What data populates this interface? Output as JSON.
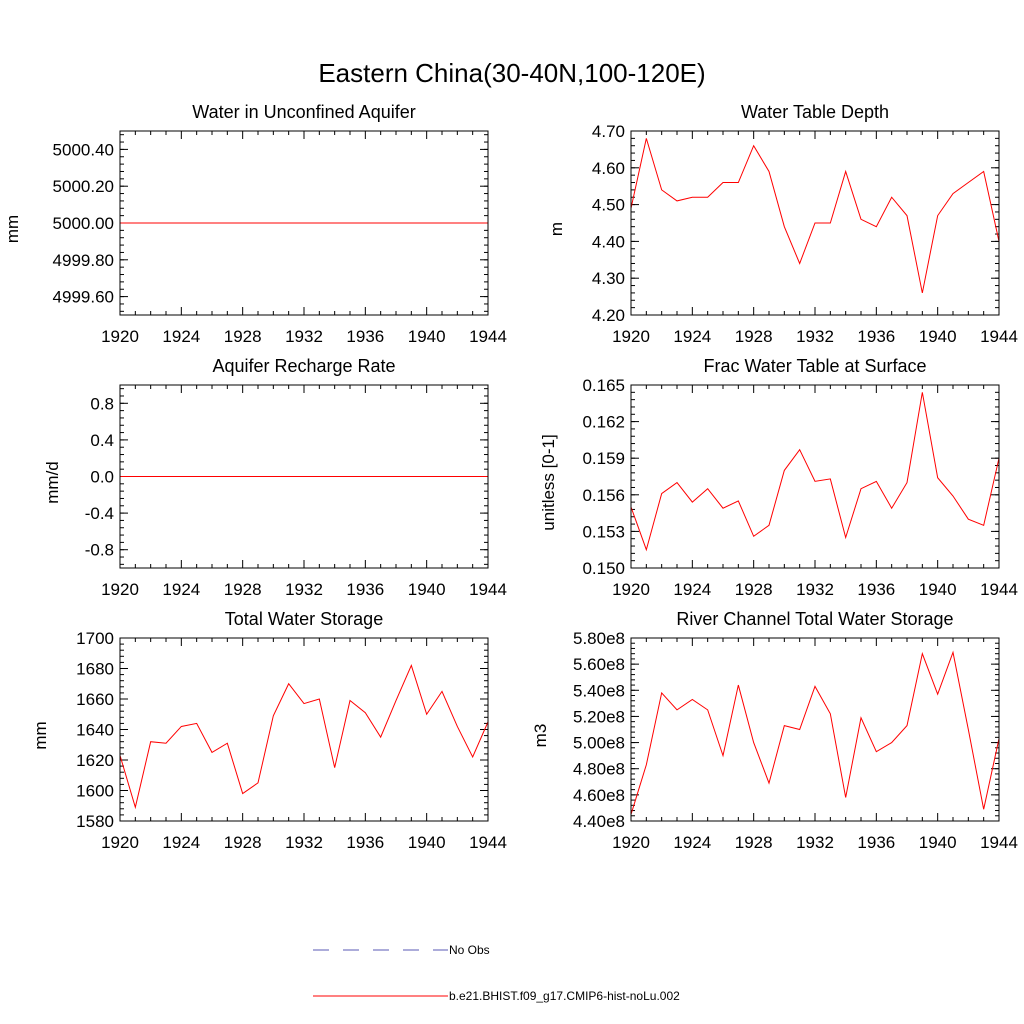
{
  "title": "Eastern China(30-40N,100-120E)",
  "legend": {
    "entries": [
      {
        "label": "No Obs",
        "color": "#5a5ab4",
        "style": "dashed"
      },
      {
        "label": "b.e21.BHIST.f09_g17.CMIP6-hist-noLu.002",
        "color": "#ff0000",
        "style": "solid"
      }
    ]
  },
  "chart_data": [
    {
      "type": "line",
      "title": "Water in Unconfined Aquifer",
      "xlabel": "",
      "ylabel": "mm",
      "xlim": [
        1920,
        1944
      ],
      "ylim": [
        4999.5,
        5000.5
      ],
      "xticks": [
        "1920",
        "1924",
        "1928",
        "1932",
        "1936",
        "1940",
        "1944"
      ],
      "yticks": [
        {
          "value": 4999.6,
          "label": "4999.60"
        },
        {
          "value": 4999.8,
          "label": "4999.80"
        },
        {
          "value": 5000.0,
          "label": "5000.00"
        },
        {
          "value": 5000.2,
          "label": "5000.20"
        },
        {
          "value": 5000.4,
          "label": "5000.40"
        }
      ],
      "series": [
        {
          "color": "#ff0000",
          "x": [
            1920,
            1921,
            1922,
            1923,
            1924,
            1925,
            1926,
            1927,
            1928,
            1929,
            1930,
            1931,
            1932,
            1933,
            1934,
            1935,
            1936,
            1937,
            1938,
            1939,
            1940,
            1941,
            1942,
            1943,
            1944
          ],
          "values": [
            5000,
            5000,
            5000,
            5000,
            5000,
            5000,
            5000,
            5000,
            5000,
            5000,
            5000,
            5000,
            5000,
            5000,
            5000,
            5000,
            5000,
            5000,
            5000,
            5000,
            5000,
            5000,
            5000,
            5000,
            5000
          ]
        }
      ]
    },
    {
      "type": "line",
      "title": "Water Table Depth",
      "xlabel": "",
      "ylabel": "m",
      "xlim": [
        1920,
        1944
      ],
      "ylim": [
        4.2,
        4.7
      ],
      "xticks": [
        "1920",
        "1924",
        "1928",
        "1932",
        "1936",
        "1940",
        "1944"
      ],
      "yticks": [
        {
          "value": 4.2,
          "label": "4.20"
        },
        {
          "value": 4.3,
          "label": "4.30"
        },
        {
          "value": 4.4,
          "label": "4.40"
        },
        {
          "value": 4.5,
          "label": "4.50"
        },
        {
          "value": 4.6,
          "label": "4.60"
        },
        {
          "value": 4.7,
          "label": "4.70"
        }
      ],
      "series": [
        {
          "color": "#ff0000",
          "x": [
            1920,
            1921,
            1922,
            1923,
            1924,
            1925,
            1926,
            1927,
            1928,
            1929,
            1930,
            1931,
            1932,
            1933,
            1934,
            1935,
            1936,
            1937,
            1938,
            1939,
            1940,
            1941,
            1942,
            1943,
            1944
          ],
          "values": [
            4.49,
            4.68,
            4.54,
            4.51,
            4.52,
            4.52,
            4.56,
            4.56,
            4.66,
            4.59,
            4.44,
            4.34,
            4.45,
            4.45,
            4.59,
            4.46,
            4.44,
            4.52,
            4.47,
            4.26,
            4.47,
            4.53,
            4.56,
            4.59,
            4.4
          ]
        }
      ]
    },
    {
      "type": "line",
      "title": "Aquifer Recharge Rate",
      "xlabel": "",
      "ylabel": "mm/d",
      "xlim": [
        1920,
        1944
      ],
      "ylim": [
        -1.0,
        1.0
      ],
      "xticks": [
        "1920",
        "1924",
        "1928",
        "1932",
        "1936",
        "1940",
        "1944"
      ],
      "yticks": [
        {
          "value": -0.8,
          "label": "-0.8"
        },
        {
          "value": -0.4,
          "label": "-0.4"
        },
        {
          "value": 0.0,
          "label": "0.0"
        },
        {
          "value": 0.4,
          "label": "0.4"
        },
        {
          "value": 0.8,
          "label": "0.8"
        }
      ],
      "series": [
        {
          "color": "#ff0000",
          "x": [
            1920,
            1921,
            1922,
            1923,
            1924,
            1925,
            1926,
            1927,
            1928,
            1929,
            1930,
            1931,
            1932,
            1933,
            1934,
            1935,
            1936,
            1937,
            1938,
            1939,
            1940,
            1941,
            1942,
            1943,
            1944
          ],
          "values": [
            0,
            0,
            0,
            0,
            0,
            0,
            0,
            0,
            0,
            0,
            0,
            0,
            0,
            0,
            0,
            0,
            0,
            0,
            0,
            0,
            0,
            0,
            0,
            0,
            0
          ]
        }
      ]
    },
    {
      "type": "line",
      "title": "Frac Water Table at Surface",
      "xlabel": "",
      "ylabel": "unitless [0-1]",
      "xlim": [
        1920,
        1944
      ],
      "ylim": [
        0.15,
        0.165
      ],
      "xticks": [
        "1920",
        "1924",
        "1928",
        "1932",
        "1936",
        "1940",
        "1944"
      ],
      "yticks": [
        {
          "value": 0.15,
          "label": "0.150"
        },
        {
          "value": 0.153,
          "label": "0.153"
        },
        {
          "value": 0.156,
          "label": "0.156"
        },
        {
          "value": 0.159,
          "label": "0.159"
        },
        {
          "value": 0.162,
          "label": "0.162"
        },
        {
          "value": 0.165,
          "label": "0.165"
        }
      ],
      "series": [
        {
          "color": "#ff0000",
          "x": [
            1920,
            1921,
            1922,
            1923,
            1924,
            1925,
            1926,
            1927,
            1928,
            1929,
            1930,
            1931,
            1932,
            1933,
            1934,
            1935,
            1936,
            1937,
            1938,
            1939,
            1940,
            1941,
            1942,
            1943,
            1944
          ],
          "values": [
            0.155,
            0.1515,
            0.1561,
            0.157,
            0.1554,
            0.1565,
            0.1549,
            0.1555,
            0.1526,
            0.1535,
            0.158,
            0.1597,
            0.1571,
            0.1573,
            0.1525,
            0.1565,
            0.1571,
            0.1549,
            0.157,
            0.1644,
            0.1574,
            0.1559,
            0.154,
            0.1535,
            0.159
          ]
        }
      ]
    },
    {
      "type": "line",
      "title": "Total Water Storage",
      "xlabel": "",
      "ylabel": "mm",
      "xlim": [
        1920,
        1944
      ],
      "ylim": [
        1580,
        1700
      ],
      "xticks": [
        "1920",
        "1924",
        "1928",
        "1932",
        "1936",
        "1940",
        "1944"
      ],
      "yticks": [
        {
          "value": 1580,
          "label": "1580"
        },
        {
          "value": 1600,
          "label": "1600"
        },
        {
          "value": 1620,
          "label": "1620"
        },
        {
          "value": 1640,
          "label": "1640"
        },
        {
          "value": 1660,
          "label": "1660"
        },
        {
          "value": 1680,
          "label": "1680"
        },
        {
          "value": 1700,
          "label": "1700"
        }
      ],
      "series": [
        {
          "color": "#ff0000",
          "x": [
            1920,
            1921,
            1922,
            1923,
            1924,
            1925,
            1926,
            1927,
            1928,
            1929,
            1930,
            1931,
            1932,
            1933,
            1934,
            1935,
            1936,
            1937,
            1938,
            1939,
            1940,
            1941,
            1942,
            1943,
            1944
          ],
          "values": [
            1623,
            1589,
            1632,
            1631,
            1642,
            1644,
            1625,
            1631,
            1598,
            1605,
            1649,
            1670,
            1657,
            1660,
            1615,
            1659,
            1651,
            1635,
            1659,
            1682,
            1650,
            1665,
            1642,
            1622,
            1645
          ]
        }
      ]
    },
    {
      "type": "line",
      "title": "River Channel Total Water Storage",
      "xlabel": "",
      "ylabel": "m3",
      "xlim": [
        1920,
        1944
      ],
      "ylim": [
        440000000,
        580000000
      ],
      "xticks": [
        "1920",
        "1924",
        "1928",
        "1932",
        "1936",
        "1940",
        "1944"
      ],
      "yticks": [
        {
          "value": 440000000,
          "label": "4.40e8"
        },
        {
          "value": 460000000,
          "label": "4.60e8"
        },
        {
          "value": 480000000,
          "label": "4.80e8"
        },
        {
          "value": 500000000,
          "label": "5.00e8"
        },
        {
          "value": 520000000,
          "label": "5.20e8"
        },
        {
          "value": 540000000,
          "label": "5.40e8"
        },
        {
          "value": 560000000,
          "label": "5.60e8"
        },
        {
          "value": 580000000,
          "label": "5.80e8"
        }
      ],
      "series": [
        {
          "color": "#ff0000",
          "x": [
            1920,
            1921,
            1922,
            1923,
            1924,
            1925,
            1926,
            1927,
            1928,
            1929,
            1930,
            1931,
            1932,
            1933,
            1934,
            1935,
            1936,
            1937,
            1938,
            1939,
            1940,
            1941,
            1942,
            1943,
            1944
          ],
          "values": [
            445000000,
            483000000,
            538000000,
            525000000,
            533000000,
            525000000,
            490000000,
            544000000,
            500000000,
            469000000,
            513000000,
            510000000,
            543000000,
            522000000,
            458000000,
            519000000,
            493000000,
            500000000,
            513000000,
            568000000,
            537000000,
            569000000,
            510000000,
            449000000,
            503000000
          ]
        }
      ]
    }
  ]
}
